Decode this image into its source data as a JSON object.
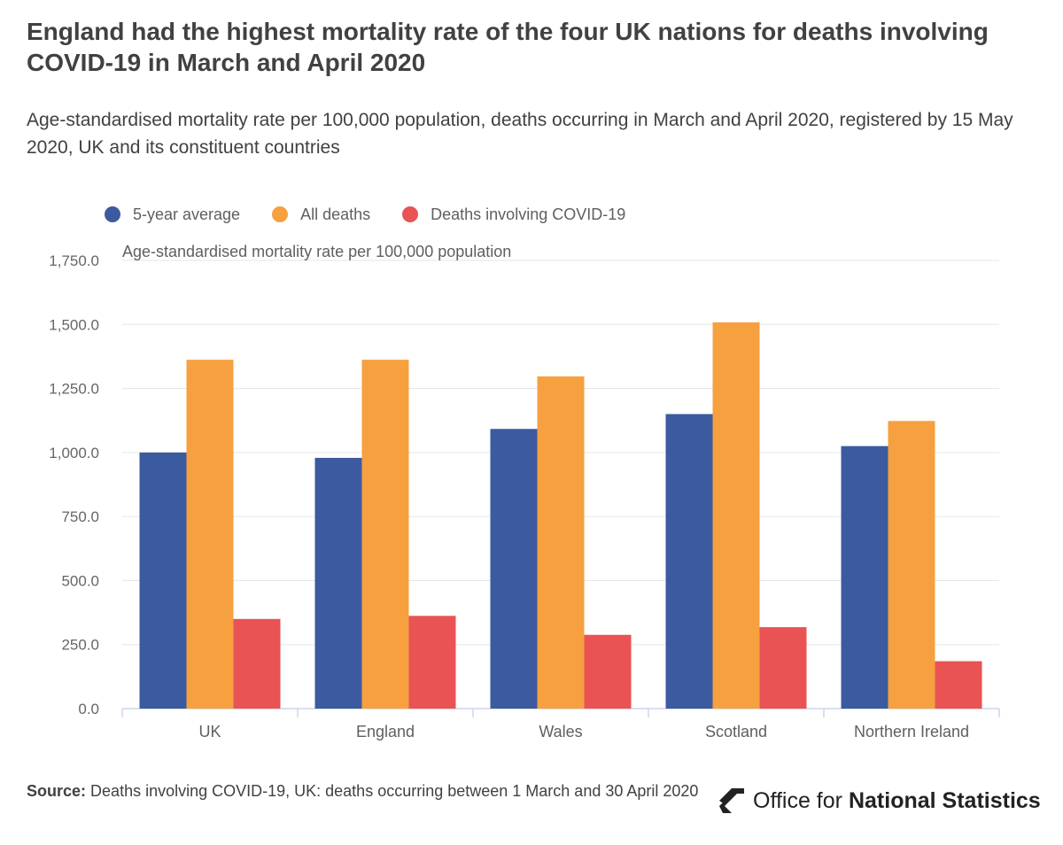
{
  "header": {
    "title": "England had the highest mortality rate of the four UK nations for deaths involving COVID-19 in March and April 2020",
    "subtitle": "Age-standardised mortality rate per 100,000 population, deaths occurring in March and April 2020, registered by 15 May 2020, UK and its constituent countries"
  },
  "chart_data": {
    "type": "bar",
    "title": "England had the highest mortality rate of the four UK nations for deaths involving COVID-19 in March and April 2020",
    "subtitle": "Age-standardised mortality rate per 100,000 population, deaths occurring in March and April 2020, registered by 15 May 2020, UK and its constituent countries",
    "xlabel": "",
    "ylabel": "Age-standardised mortality rate per 100,000 population",
    "categories": [
      "UK",
      "England",
      "Wales",
      "Scotland",
      "Northern Ireland"
    ],
    "series": [
      {
        "name": "5-year average",
        "color": "#3c5aa0",
        "values": [
          1000.0,
          979.0,
          1092.0,
          1150.0,
          1025.0
        ]
      },
      {
        "name": "All deaths",
        "color": "#f6a040",
        "values": [
          1362.0,
          1362.0,
          1297.0,
          1508.0,
          1123.0
        ]
      },
      {
        "name": "Deaths involving COVID-19",
        "color": "#e95354",
        "values": [
          350.0,
          362.0,
          288.0,
          318.0,
          185.0
        ]
      }
    ],
    "ylim": [
      0,
      1750
    ],
    "yticks": [
      0,
      250,
      500,
      750,
      1000,
      1250,
      1500,
      1750
    ],
    "ytick_labels": [
      "0.0",
      "250.0",
      "500.0",
      "750.0",
      "1,000.0",
      "1,250.0",
      "1,500.0",
      "1,750.0"
    ],
    "grid": true,
    "legend_position": "top-left"
  },
  "footer": {
    "source_label": "Source:",
    "source_text": "Deaths involving COVID-19, UK: deaths occurring between 1 March and 30 April 2020",
    "logo_regular": "Office for",
    "logo_bold": "National Statistics",
    "logo_icon": "ons-logo-icon"
  },
  "colors": {
    "grid": "#e6e6e6",
    "axis": "#ccd6eb",
    "tick_text": "#666666"
  }
}
